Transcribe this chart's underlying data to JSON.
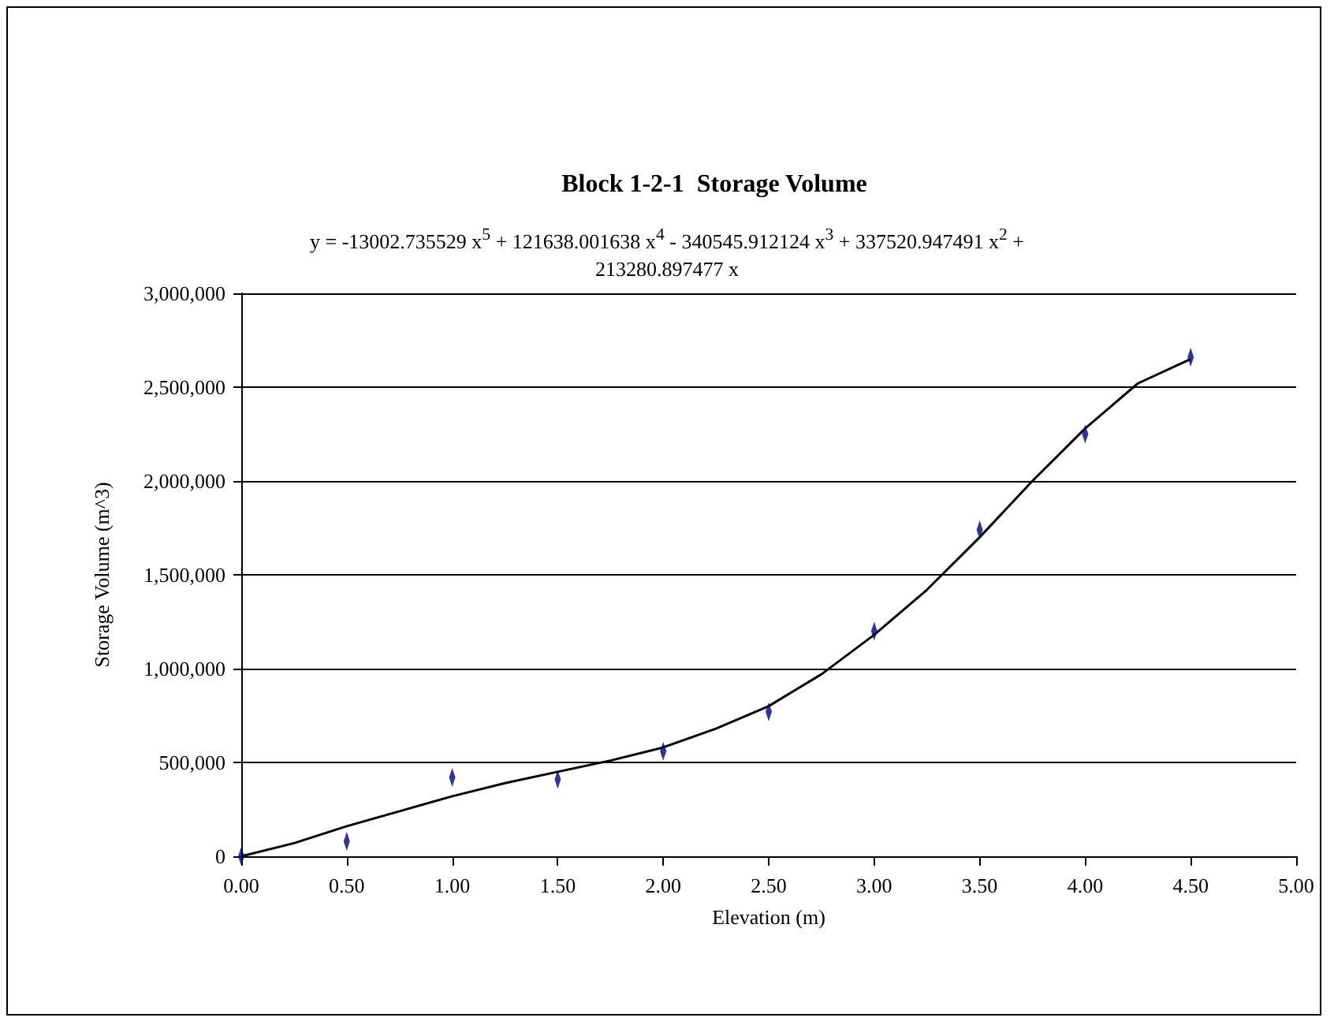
{
  "chart_data": {
    "type": "scatter",
    "title": "Block 1-2-1  Storage Volume",
    "xlabel": "Elevation (m)",
    "ylabel": "Storage Volume (m^3)",
    "annotations": [
      "y = -13002.735529 x$^{5}$ + 121638.001638 x$^{4}$ - 340545.912124 x$^{3}$ + 337520.947491 x$^{2}$ + 213280.897477 x"
    ],
    "x": [
      0,
      0.5,
      1,
      1.5,
      2,
      2.5,
      3,
      3.5,
      4,
      4.5
    ],
    "series": [
      {
        "color": "#000080",
        "values": [
          0,
          80000,
          420000,
          410000,
          560000,
          770000,
          1200000,
          1740000,
          2250000,
          2660000
        ]
      },
      {
        "type": "line",
        "color": "#000000",
        "marker": "none",
        "x": [
          0,
          0.25,
          0.5,
          0.75,
          1,
          1.25,
          1.5,
          1.75,
          2,
          2.25,
          2.5,
          2.75,
          3,
          3.25,
          3.5,
          3.75,
          4,
          4.25,
          4.5
        ],
        "values": [
          0,
          70000,
          160000,
          240000,
          320000,
          390000,
          450000,
          510000,
          580000,
          680000,
          800000,
          970000,
          1180000,
          1420000,
          1700000,
          2000000,
          2280000,
          2520000,
          2650000
        ]
      }
    ],
    "xlim": [
      0,
      5
    ],
    "ylim": [
      0,
      3000000
    ],
    "xticks": [
      {
        "value": 0,
        "label": "0.00"
      },
      {
        "value": 0.5,
        "label": "0.50"
      },
      {
        "value": 1,
        "label": "1.00"
      },
      {
        "value": 1.5,
        "label": "1.50"
      },
      {
        "value": 2,
        "label": "2.00"
      },
      {
        "value": 2.5,
        "label": "2.50"
      },
      {
        "value": 3,
        "label": "3.00"
      },
      {
        "value": 3.5,
        "label": "3.50"
      },
      {
        "value": 4,
        "label": "4.00"
      },
      {
        "value": 4.5,
        "label": "4.50"
      },
      {
        "value": 5,
        "label": "5.00"
      }
    ],
    "yticks": [
      0,
      {
        "value": 500000,
        "label": "500,000"
      },
      {
        "value": 1000000,
        "label": "1,000,000"
      },
      {
        "value": 1500000,
        "label": "1,500,000"
      },
      {
        "value": 2000000,
        "label": "2,000,000"
      },
      {
        "value": 2500000,
        "label": "2,500,000"
      },
      {
        "value": 3000000,
        "label": "3,000,000"
      }
    ],
    "grid": "y"
  }
}
